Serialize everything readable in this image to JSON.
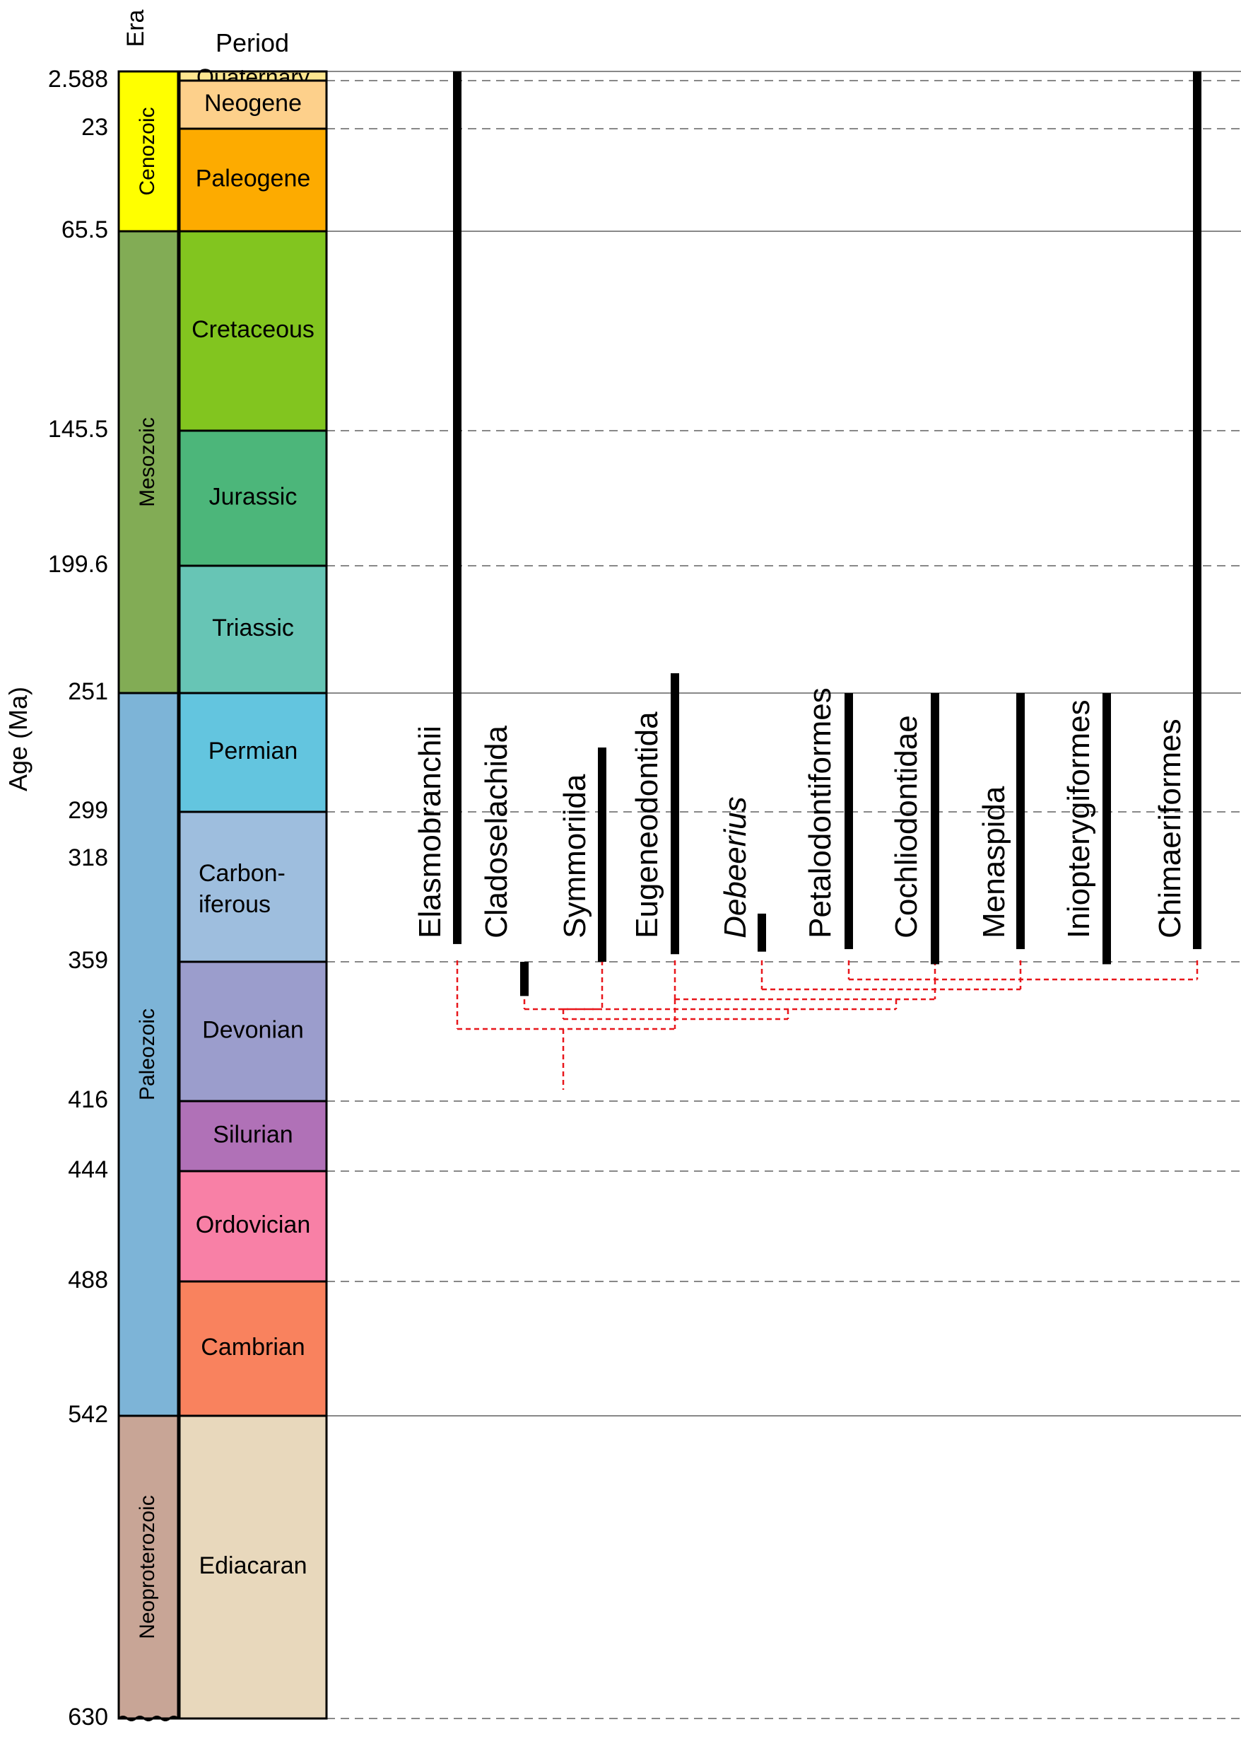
{
  "headers": {
    "era": "Era",
    "period": "Period"
  },
  "axis_label": "Age (Ma)",
  "ticks": [
    "2.588",
    "23",
    "65.5",
    "145.5",
    "199.6",
    "251",
    "299",
    "318",
    "359",
    "416",
    "444",
    "488",
    "542",
    "630"
  ],
  "eras": [
    {
      "name": "Cenozoic",
      "start": 0,
      "end": 65.5,
      "color": "#ffff00"
    },
    {
      "name": "Mesozoic",
      "start": 65.5,
      "end": 251,
      "color": "#82ac55"
    },
    {
      "name": "Paleozoic",
      "start": 251,
      "end": 542,
      "color": "#7db4d7"
    },
    {
      "name": "Neoproterozoic",
      "start": 542,
      "end": 630,
      "color": "#c8a596"
    }
  ],
  "periods": [
    {
      "name": "Quaternary",
      "start": 0,
      "end": 2.588,
      "color": "#fde690"
    },
    {
      "name": "Neogene",
      "start": 2.588,
      "end": 23,
      "color": "#fdd08b"
    },
    {
      "name": "Paleogene",
      "start": 23,
      "end": 65.5,
      "color": "#fdab00"
    },
    {
      "name": "Cretaceous",
      "start": 65.5,
      "end": 145.5,
      "color": "#82c51f"
    },
    {
      "name": "Jurassic",
      "start": 145.5,
      "end": 199.6,
      "color": "#4cb67a"
    },
    {
      "name": "Triassic",
      "start": 199.6,
      "end": 251,
      "color": "#67c5b5"
    },
    {
      "name": "Permian",
      "start": 251,
      "end": 299,
      "color": "#63c5df"
    },
    {
      "name": "Carbon-",
      "name2": "iferous",
      "start": 299,
      "end": 359,
      "color": "#9ebede"
    },
    {
      "name": "Devonian",
      "start": 359,
      "end": 416,
      "color": "#9b9dcc"
    },
    {
      "name": "Silurian",
      "start": 416,
      "end": 444,
      "color": "#b071b7"
    },
    {
      "name": "Ordovician",
      "start": 444,
      "end": 488,
      "color": "#f880a6"
    },
    {
      "name": "Cambrian",
      "start": 488,
      "end": 542,
      "color": "#f9825e"
    },
    {
      "name": "Ediacaran",
      "start": 542,
      "end": 630,
      "color": "#e8d8bc"
    }
  ],
  "boundaries": [
    {
      "age": 0,
      "style": "solid"
    },
    {
      "age": 2.588,
      "style": "dashed"
    },
    {
      "age": 23,
      "style": "dashed"
    },
    {
      "age": 65.5,
      "style": "solid"
    },
    {
      "age": 145.5,
      "style": "dashed"
    },
    {
      "age": 199.6,
      "style": "dashed"
    },
    {
      "age": 251,
      "style": "solid"
    },
    {
      "age": 299,
      "style": "dashed"
    },
    {
      "age": 359,
      "style": "dashed"
    },
    {
      "age": 416,
      "style": "dashed"
    },
    {
      "age": 444,
      "style": "dashed"
    },
    {
      "age": 488,
      "style": "dashed"
    },
    {
      "age": 542,
      "style": "solid"
    },
    {
      "age": 630,
      "style": "dashed"
    }
  ],
  "taxa": [
    {
      "name": "Elasmobranchii",
      "italic": false,
      "first": 352,
      "last": 0
    },
    {
      "name": "Cladoselachida",
      "italic": false,
      "first": 373,
      "last": 359
    },
    {
      "name": "Symmoriida",
      "italic": false,
      "first": 359,
      "last": 273
    },
    {
      "name": "Eugeneodontida",
      "italic": false,
      "first": 356,
      "last": 243
    },
    {
      "name": "Debeerius",
      "italic": true,
      "first": 355,
      "last": 340
    },
    {
      "name": "Petalodontiformes",
      "italic": false,
      "first": 354,
      "last": 251
    },
    {
      "name": "Cochliodontidae",
      "italic": false,
      "first": 360,
      "last": 251
    },
    {
      "name": "Menaspida",
      "italic": false,
      "first": 354,
      "last": 251
    },
    {
      "name": "Iniopterygiformes",
      "italic": false,
      "first": 360,
      "last": 251
    },
    {
      "name": "Chimaeriformes",
      "italic": false,
      "first": 354,
      "last": 0
    }
  ],
  "colors": {
    "range_bar": "#000000",
    "phylogeny": "#e8161b",
    "grid": "#888888"
  }
}
